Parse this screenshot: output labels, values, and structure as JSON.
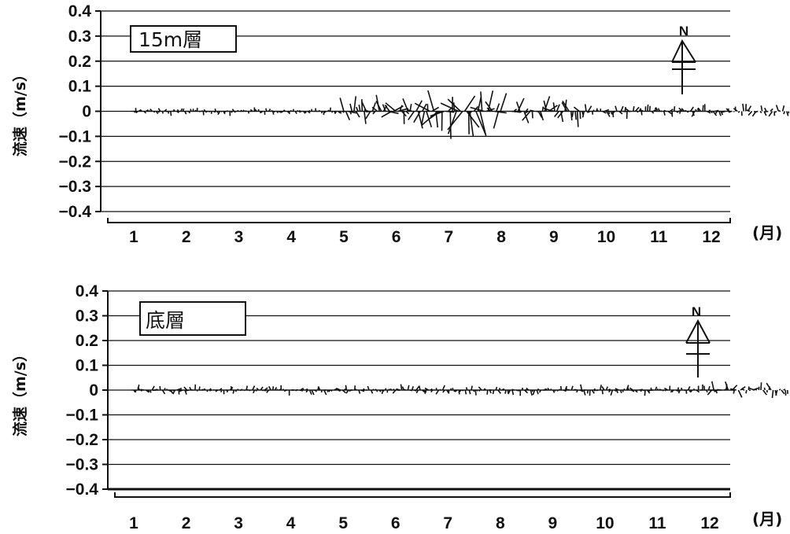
{
  "x_unit": "(月)",
  "chart_data": [
    {
      "type": "line",
      "panel_label": "15m層",
      "ylabel": "流速（m/s）",
      "yticks": [
        "0.4",
        "0.3",
        "0.2",
        "0.1",
        "0",
        "−0.1",
        "−0.2",
        "−0.3",
        "−0.4"
      ],
      "ylim": [
        -0.4,
        0.4
      ],
      "categories": [
        "1",
        "2",
        "3",
        "4",
        "5",
        "6",
        "7",
        "8",
        "9",
        "10",
        "11",
        "12"
      ],
      "north_label": "N",
      "grid": true,
      "segments": [
        {
          "start": 0.0,
          "end": 4.0,
          "amp": 0.015
        },
        {
          "start": 4.0,
          "end": 4.6,
          "amp": 0.05
        },
        {
          "start": 4.6,
          "end": 5.6,
          "amp": 0.07
        },
        {
          "start": 5.6,
          "end": 6.4,
          "amp": 0.1
        },
        {
          "start": 6.4,
          "end": 7.0,
          "amp": 0.09
        },
        {
          "start": 7.2,
          "end": 8.5,
          "amp": 0.06
        },
        {
          "start": 8.5,
          "end": 12.5,
          "amp": 0.025
        }
      ]
    },
    {
      "type": "line",
      "panel_label": "底層",
      "ylabel": "流速（m/s）",
      "yticks": [
        "0.4",
        "0.3",
        "0.2",
        "0.1",
        "0",
        "−0.1",
        "−0.2",
        "−0.3",
        "−0.4"
      ],
      "ylim": [
        -0.4,
        0.4
      ],
      "categories": [
        "1",
        "2",
        "3",
        "4",
        "5",
        "6",
        "7",
        "8",
        "9",
        "10",
        "11",
        "12"
      ],
      "north_label": "N",
      "grid": true,
      "segments": [
        {
          "start": 0.0,
          "end": 11.0,
          "amp": 0.02
        },
        {
          "start": 11.0,
          "end": 12.5,
          "amp": 0.035
        }
      ]
    }
  ]
}
